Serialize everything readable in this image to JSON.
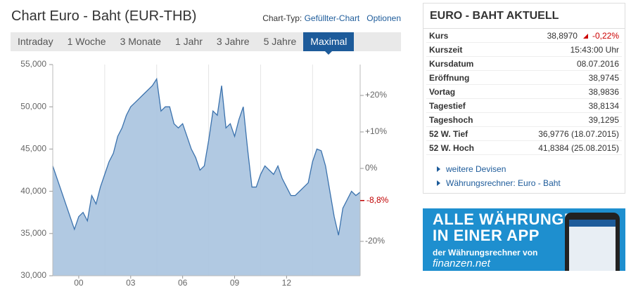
{
  "header": {
    "title": "Chart Euro - Baht (EUR-THB)",
    "chart_type_label": "Chart-Typ:",
    "chart_type": "Gefüllter-Chart",
    "options": "Optionen"
  },
  "tabs": [
    "Intraday",
    "1 Woche",
    "3 Monate",
    "1 Jahr",
    "3 Jahre",
    "5 Jahre",
    "Maximal"
  ],
  "active_tab": "Maximal",
  "chart_data": {
    "type": "area",
    "categories": [
      null,
      null,
      null,
      null,
      null,
      null,
      "00",
      null,
      null,
      null,
      null,
      null,
      null,
      null,
      null,
      null,
      null,
      null,
      "03",
      null,
      null,
      null,
      null,
      null,
      null,
      null,
      null,
      null,
      null,
      null,
      "06",
      null,
      null,
      null,
      null,
      null,
      null,
      null,
      null,
      null,
      null,
      null,
      "09",
      null,
      null,
      null,
      null,
      null,
      null,
      null,
      null,
      null,
      null,
      null,
      "12",
      null,
      null,
      null,
      null,
      null,
      null,
      null,
      null,
      null,
      null,
      null,
      null,
      null,
      null,
      null,
      null,
      null
    ],
    "values": [
      43,
      41.5,
      40,
      38.5,
      37,
      35.5,
      37,
      37.5,
      36.5,
      39.5,
      38.5,
      40.5,
      42,
      43.5,
      44.5,
      46.5,
      47.5,
      49,
      50,
      50.5,
      51,
      51.5,
      52,
      52.5,
      53.3,
      49.5,
      50,
      50,
      48,
      47.5,
      48,
      46.5,
      45,
      44,
      42.5,
      43,
      46,
      49.5,
      49,
      52.5,
      47.5,
      48,
      46.5,
      48.5,
      50,
      45,
      40.5,
      40.5,
      42,
      43,
      42.5,
      42,
      43,
      41.5,
      40.5,
      39.5,
      39.5,
      40,
      40.5,
      41,
      43.5,
      45,
      44.8,
      43,
      40,
      37,
      34.8,
      38,
      39,
      40,
      39.5,
      39.9
    ],
    "color": "#a8c3df",
    "line_color": "#3b72ad",
    "ylim": [
      30,
      55
    ],
    "yticks": [
      {
        "value": 55,
        "label": "55,000"
      },
      {
        "value": 50,
        "label": "50,000"
      },
      {
        "value": 45,
        "label": "45,000"
      },
      {
        "value": 40,
        "label": "40,000"
      },
      {
        "value": 35,
        "label": "35,000"
      },
      {
        "value": 30,
        "label": "30,000"
      }
    ],
    "y2lim": [
      -29.42,
      28.46
    ],
    "y2ticks": [
      {
        "value": 20,
        "label": "+20%"
      },
      {
        "value": 10,
        "label": "+10%"
      },
      {
        "value": 0,
        "label": "0%"
      },
      {
        "value": -20,
        "label": "-20%"
      }
    ],
    "annotations": [
      {
        "value": -8.8,
        "label": "-8,8%",
        "axis": "y2",
        "color": "#c00000"
      }
    ],
    "grid": true
  },
  "quote_panel": {
    "title": "EURO - BAHT AKTUELL",
    "rows": [
      [
        "Kurs",
        "38,8970",
        "-0,22%"
      ],
      [
        "Kurszeit",
        "15:43:00 Uhr"
      ],
      [
        "Kursdatum",
        "08.07.2016"
      ],
      [
        "Eröffnung",
        "38,9745"
      ],
      [
        "Vortag",
        "38,9836"
      ],
      [
        "Tagestief",
        "38,8134"
      ],
      [
        "Tageshoch",
        "39,1295"
      ],
      [
        "52 W. Tief",
        "36,9776 (18.07.2015)"
      ],
      [
        "52 W. Hoch",
        "41,8384 (25.08.2015)"
      ]
    ],
    "links": [
      "weitere Devisen",
      "Währungsrechner: Euro - Baht"
    ]
  },
  "ad": {
    "line1": "ALLE WÄHRUNGEN",
    "line2": "IN EINER APP",
    "line3": "der Währungsrechner von",
    "brand": "finanzen",
    "brand_suffix": ".net"
  }
}
